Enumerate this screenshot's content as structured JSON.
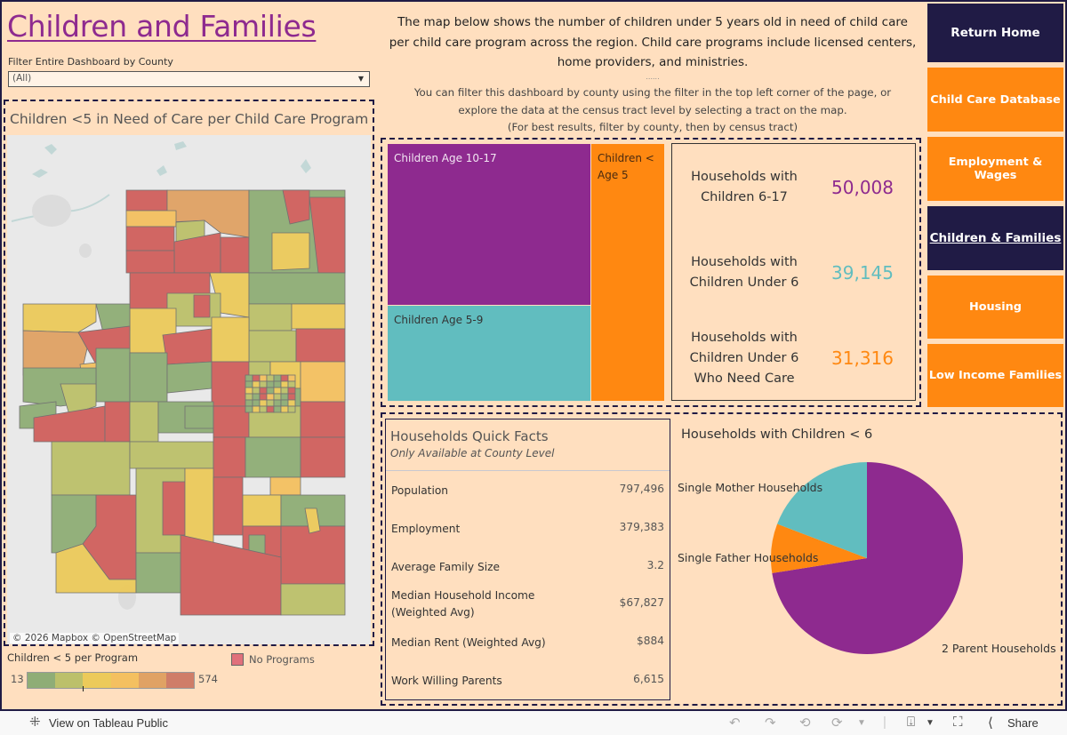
{
  "header": {
    "title": "Children and Families",
    "filter_label": "Filter Entire Dashboard by County",
    "filter_value": "(All)"
  },
  "description": {
    "main": "The map below shows the number of children under 5 years old in need of child care per child care program across the region. Child care programs include licensed centers, home providers, and ministries.",
    "dots": "......",
    "sub_line1": "You can filter this dashboard by county using the filter in the top left corner of the page, or",
    "sub_line2": "explore the data at the census tract level by selecting a tract on the map.",
    "sub_line3": "(For best results, filter by county, then by census tract)"
  },
  "map": {
    "title": "Children <5 in Need of Care per Child Care Program",
    "attribution": "© 2026 Mapbox  © OpenStreetMap",
    "legend_title": "Children < 5 per Program",
    "legend_min": "13",
    "legend_max": "574",
    "legend_colors": [
      "#8fad76",
      "#bcc06a",
      "#ecca5a",
      "#f4c060",
      "#e0a264",
      "#cf7d68"
    ],
    "no_programs_label": "No Programs",
    "no_programs_color": "#e0707b"
  },
  "treemap": {
    "cells": [
      {
        "label": "Children Age 10-17",
        "color": "#8e2a8f",
        "text_color": "#f2e6f2"
      },
      {
        "label": "Children Age 5-9",
        "color": "#61bdbf",
        "text_color": "#333333"
      },
      {
        "label": "Children < Age 5",
        "color": "#ff8811",
        "text_color": "#4a2a10"
      }
    ]
  },
  "kpis": [
    {
      "label": "Households with Children 6-17",
      "value": "50,008",
      "color": "#8e2a8f"
    },
    {
      "label": "Households with Children Under 6",
      "value": "39,145",
      "color": "#61bdbf"
    },
    {
      "label": "Households with Children Under 6 Who Need Care",
      "value": "31,316",
      "color": "#ff8811"
    }
  ],
  "nav": [
    {
      "label": "Return Home",
      "style": "dark"
    },
    {
      "label": "Child Care Database",
      "style": "orange"
    },
    {
      "label": "Employment & Wages",
      "style": "orange"
    },
    {
      "label": "Children & Families",
      "style": "dark",
      "current": true
    },
    {
      "label": "Housing",
      "style": "orange"
    },
    {
      "label": "Low Income Families",
      "style": "orange"
    }
  ],
  "quick_facts": {
    "title": "Households Quick Facts",
    "subtitle": "Only Available at County Level",
    "rows": [
      {
        "label": "Population",
        "value": "797,496"
      },
      {
        "label": "Employment",
        "value": "379,383"
      },
      {
        "label": "Average Family Size",
        "value": "3.2"
      },
      {
        "label": "Median Household Income (Weighted Avg)",
        "value": "$67,827"
      },
      {
        "label": "Median Rent (Weighted Avg)",
        "value": "$884"
      },
      {
        "label": "Work Willing Parents",
        "value": "6,615"
      }
    ]
  },
  "chart_data": {
    "type": "pie",
    "title": "Households with Children < 6",
    "slices": [
      {
        "label": "2 Parent Households",
        "value": 72.5,
        "color": "#8e2a8f"
      },
      {
        "label": "Single Father Households",
        "value": 8.3,
        "color": "#ff8811"
      },
      {
        "label": "Single Mother Households",
        "value": 19.2,
        "color": "#61bdbf"
      }
    ],
    "start": "top",
    "direction": "clockwise",
    "units": "approximate percent of households"
  },
  "toolbar": {
    "view_on_public": "View on Tableau Public",
    "share": "Share"
  }
}
